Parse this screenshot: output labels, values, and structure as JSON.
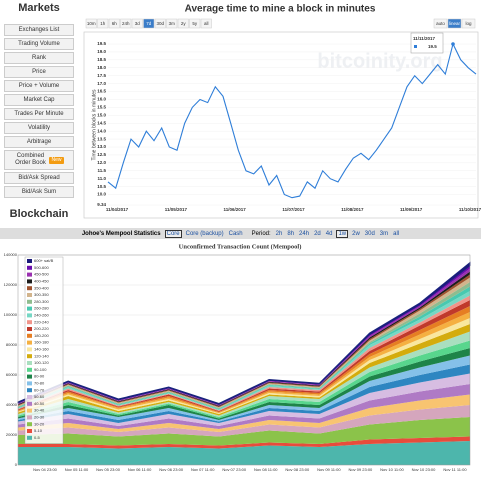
{
  "sidebar": {
    "title": "Markets",
    "items": [
      "Exchanges List",
      "Trading Volume",
      "Rank",
      "Price",
      "Price + Volume",
      "Market Cap",
      "Trades Per Minute",
      "Volatility",
      "Arbitrage",
      "Combined Order Book",
      "Bid/Ask Spread",
      "Bid/Ask Sum"
    ],
    "badge": "New",
    "badge_item": "Combined Order Book",
    "section": "Blockchain"
  },
  "mempool_bar": {
    "title": "Johoe's Mempool Statistics",
    "sources": [
      "Core",
      "Core (backup)",
      "Cash"
    ],
    "selected_source": "Core",
    "period_label": "Period:",
    "periods": [
      "2h",
      "8h",
      "24h",
      "2d",
      "4d",
      "1w",
      "2w",
      "30d",
      "3m",
      "all"
    ],
    "selected_period": "1w"
  },
  "chart_data": [
    {
      "type": "line",
      "title": "Average time to mine a block in minutes",
      "ranges": [
        "10m",
        "1h",
        "6h",
        "24h",
        "3d",
        "7d",
        "30d",
        "3m",
        "2y",
        "5y",
        "all"
      ],
      "selected_range": "7d",
      "scales": [
        "auto",
        "linear",
        "log"
      ],
      "selected_scale": "linear",
      "watermark": "bitcoinity.org",
      "ylabel": "Time between blocks in minutes",
      "color": "#2f7ed8",
      "xtick_labels": [
        "11/04/2017",
        "11/05/2017",
        "11/06/2017",
        "11/07/2017",
        "11/08/2017",
        "11/09/2017",
        "11/10/2017"
      ],
      "values": [
        10.8,
        10.4,
        12.0,
        13.5,
        13.0,
        14.0,
        13.4,
        14.2,
        13.0,
        12.8,
        14.5,
        15.5,
        16.0,
        15.8,
        16.8,
        16.2,
        14.5,
        12.8,
        11.5,
        11.3,
        11.8,
        10.6,
        11.2,
        10.0,
        9.8,
        9.9,
        10.8,
        10.4,
        11.5,
        11.0,
        10.8,
        11.6,
        12.3,
        12.6,
        12.2,
        12.8,
        13.5,
        14.2,
        15.5,
        16.8,
        17.5,
        17.0,
        17.6,
        18.2,
        17.6,
        19.5,
        18.5,
        18.0,
        17.6
      ],
      "ylim": [
        9.34,
        19.5
      ],
      "yticks": [
        9.34,
        {
          "value": 10,
          "label": "10.0"
        },
        10.5,
        {
          "value": 11,
          "label": "11.0"
        },
        11.5,
        {
          "value": 12,
          "label": "12.0"
        },
        12.5,
        {
          "value": 13,
          "label": "13.0"
        },
        13.5,
        {
          "value": 14,
          "label": "14.0"
        },
        14.5,
        {
          "value": 15,
          "label": "15.0"
        },
        15.5,
        {
          "value": 16,
          "label": "16.0"
        },
        16.5,
        {
          "value": 17,
          "label": "17.0"
        },
        17.5,
        {
          "value": 18,
          "label": "18.0"
        },
        18.5,
        {
          "value": 19,
          "label": "19.0"
        },
        19.5
      ],
      "tooltip": {
        "date": "11/11/2017",
        "value": 19.5
      }
    },
    {
      "type": "stacked-area",
      "title": "Unconfirmed Transaction Count (Mempool)",
      "xtick_labels": [
        "Nov 04 23:00",
        "Nov 05 11:00",
        "Nov 05 23:00",
        "Nov 06 11:00",
        "Nov 06 23:00",
        "Nov 07 11:00",
        "Nov 07 23:00",
        "Nov 08 11:00",
        "Nov 08 23:00",
        "Nov 09 11:00",
        "Nov 09 23:00",
        "Nov 10 11:00",
        "Nov 10 23:00",
        "Nov 11 11:00"
      ],
      "ylim": [
        0,
        140000
      ],
      "yticks": [
        0,
        20000,
        40000,
        60000,
        80000,
        100000,
        120000,
        140000
      ],
      "grid": true,
      "series": [
        {
          "name": "600+ sat/B",
          "color": "#1a1a7a",
          "values": [
            500,
            500,
            500,
            500,
            500,
            500,
            500,
            1000,
            1000,
            2000
          ]
        },
        {
          "name": "500-600",
          "color": "#6a0dad",
          "values": [
            500,
            500,
            500,
            500,
            500,
            500,
            500,
            1000,
            1000,
            2000
          ]
        },
        {
          "name": "450-500",
          "color": "#9b30b0",
          "values": [
            500,
            500,
            500,
            500,
            500,
            500,
            500,
            1000,
            1000,
            2000
          ]
        },
        {
          "name": "400-450",
          "color": "#1c1c1c",
          "values": [
            500,
            500,
            500,
            500,
            500,
            500,
            500,
            1000,
            1000,
            2000
          ]
        },
        {
          "name": "350-400",
          "color": "#a0522d",
          "values": [
            500,
            500,
            500,
            500,
            500,
            500,
            500,
            1000,
            1000,
            2000
          ]
        },
        {
          "name": "300-350",
          "color": "#d2b48c",
          "values": [
            500,
            500,
            500,
            500,
            500,
            500,
            500,
            1000,
            2000,
            3000
          ]
        },
        {
          "name": "280-300",
          "color": "#8fbc8f",
          "values": [
            500,
            500,
            500,
            500,
            500,
            500,
            500,
            1000,
            2000,
            3000
          ]
        },
        {
          "name": "260-280",
          "color": "#48c9b0",
          "values": [
            500,
            500,
            500,
            500,
            500,
            500,
            500,
            1000,
            2000,
            3000
          ]
        },
        {
          "name": "240-260",
          "color": "#76d7c4",
          "values": [
            500,
            1000,
            500,
            500,
            500,
            1000,
            500,
            2000,
            2000,
            3000
          ]
        },
        {
          "name": "220-240",
          "color": "#f1948a",
          "values": [
            500,
            1000,
            500,
            500,
            500,
            1000,
            1000,
            2000,
            2000,
            3000
          ]
        },
        {
          "name": "200-220",
          "color": "#c0392b",
          "values": [
            500,
            1000,
            500,
            1000,
            500,
            1000,
            1000,
            2000,
            3000,
            4000
          ]
        },
        {
          "name": "180-200",
          "color": "#e67e22",
          "values": [
            500,
            1000,
            500,
            1000,
            500,
            1000,
            1000,
            2000,
            3000,
            4000
          ]
        },
        {
          "name": "160-180",
          "color": "#f5b041",
          "values": [
            500,
            1000,
            1000,
            1000,
            500,
            1000,
            1000,
            2000,
            3000,
            4000
          ]
        },
        {
          "name": "140-160",
          "color": "#f9e79f",
          "values": [
            500,
            1000,
            1000,
            1000,
            500,
            1000,
            1000,
            2000,
            3000,
            4000
          ]
        },
        {
          "name": "120-140",
          "color": "#d4ac0d",
          "values": [
            1000,
            2000,
            1000,
            1000,
            1000,
            1000,
            1000,
            3000,
            4000,
            5000
          ]
        },
        {
          "name": "100-120",
          "color": "#a9dfbf",
          "values": [
            1000,
            2000,
            1000,
            1000,
            1000,
            2000,
            2000,
            3000,
            4000,
            6000
          ]
        },
        {
          "name": "90-100",
          "color": "#58d68d",
          "values": [
            1000,
            2000,
            1000,
            1000,
            1000,
            2000,
            2000,
            3000,
            4000,
            5000
          ]
        },
        {
          "name": "80-90",
          "color": "#1e8449",
          "values": [
            1000,
            2000,
            1000,
            2000,
            1000,
            2000,
            2000,
            3000,
            4000,
            5000
          ]
        },
        {
          "name": "70-80",
          "color": "#85c1e9",
          "values": [
            1000,
            2000,
            2000,
            2000,
            1000,
            2000,
            2000,
            4000,
            5000,
            6000
          ]
        },
        {
          "name": "60-70",
          "color": "#2e86c1",
          "values": [
            1000,
            2000,
            2000,
            2000,
            1000,
            2000,
            2000,
            4000,
            5000,
            6000
          ]
        },
        {
          "name": "50-60",
          "color": "#d7bde2",
          "values": [
            2000,
            3000,
            2000,
            3000,
            2000,
            3000,
            3000,
            5000,
            6000,
            7000
          ]
        },
        {
          "name": "40-50",
          "color": "#af7ac5",
          "values": [
            2000,
            3000,
            2000,
            3000,
            2000,
            3000,
            3000,
            5000,
            6000,
            7000
          ]
        },
        {
          "name": "30-40",
          "color": "#f8c471",
          "values": [
            2000,
            3000,
            2000,
            3000,
            2000,
            3000,
            3000,
            5000,
            6000,
            7000
          ]
        },
        {
          "name": "20-30",
          "color": "#d5a6bd",
          "values": [
            3000,
            4000,
            3000,
            4000,
            3000,
            4000,
            4000,
            6000,
            7000,
            8000
          ]
        },
        {
          "name": "10-20",
          "color": "#8bc34a",
          "values": [
            6000,
            7000,
            6000,
            7000,
            6000,
            8000,
            7000,
            10000,
            12000,
            13000
          ]
        },
        {
          "name": "5-10",
          "color": "#e74c3c",
          "values": [
            2000,
            2000,
            2000,
            2000,
            2000,
            2000,
            2000,
            3000,
            3000,
            3000
          ]
        },
        {
          "name": "0-5",
          "color": "#4db6ac",
          "values": [
            12000,
            12000,
            11000,
            12000,
            11000,
            13000,
            12000,
            14000,
            15000,
            16000
          ]
        }
      ]
    }
  ]
}
